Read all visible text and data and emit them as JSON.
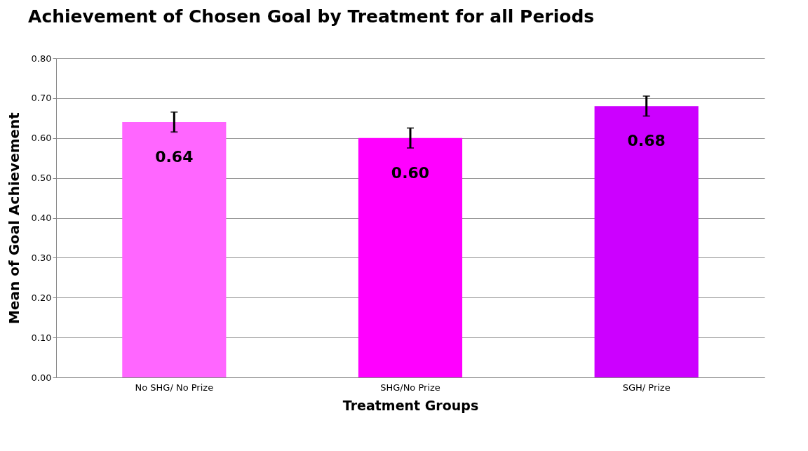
{
  "chart_data": {
    "type": "bar",
    "title": "Achievement of Chosen Goal by Treatment for all Periods",
    "xlabel": "Treatment Groups",
    "ylabel": "Mean of Goal Achievement",
    "categories": [
      "No SHG/ No Prize",
      "SHG/No Prize",
      "SGH/ Prize"
    ],
    "values": [
      0.64,
      0.6,
      0.68
    ],
    "colors": [
      "#ff66ff",
      "#ff00ff",
      "#cc00ff"
    ],
    "errors": [
      0.025,
      0.025,
      0.025
    ],
    "value_labels": [
      "0.64",
      "0.60",
      "0.68"
    ],
    "ylim": [
      0,
      0.8
    ],
    "yticks": [
      {
        "value": 0,
        "label": "0.00"
      },
      {
        "value": 0.1,
        "label": "0.10"
      },
      {
        "value": 0.2,
        "label": "0.20"
      },
      {
        "value": 0.3,
        "label": "0.30"
      },
      {
        "value": 0.4,
        "label": "0.40"
      },
      {
        "value": 0.5,
        "label": "0.50"
      },
      {
        "value": 0.6,
        "label": "0.60"
      },
      {
        "value": 0.7,
        "label": "0.70"
      },
      {
        "value": 0.8,
        "label": "0.80"
      }
    ],
    "grid": "y"
  }
}
